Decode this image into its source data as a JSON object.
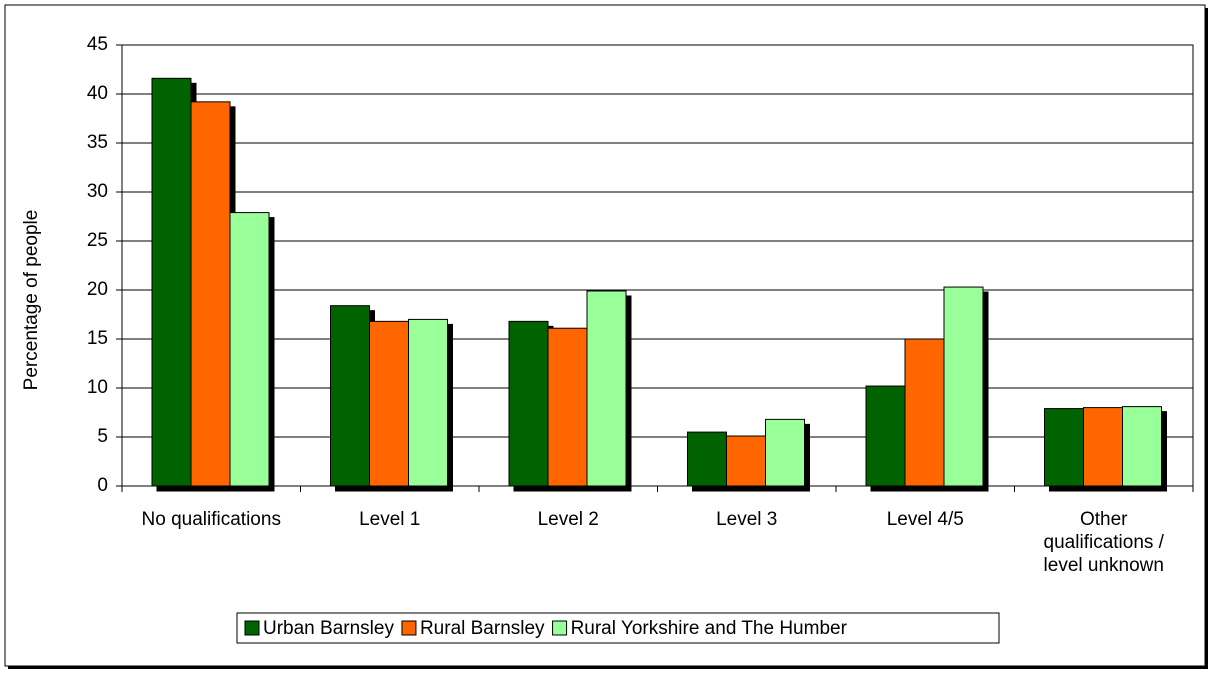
{
  "chart_data": {
    "type": "bar",
    "y_label": "Percentage of people",
    "categories": [
      "No qualifications",
      "Level 1",
      "Level 2",
      "Level 3",
      "Level 4/5",
      "Other qualifications / level unknown"
    ],
    "series": [
      {
        "name": "Urban Barnsley",
        "color": "#006400",
        "values": [
          41.6,
          18.4,
          16.8,
          5.5,
          10.2,
          7.9
        ]
      },
      {
        "name": "Rural Barnsley",
        "color": "#ff6600",
        "values": [
          39.2,
          16.8,
          16.1,
          5.1,
          15.0,
          8.0
        ]
      },
      {
        "name": "Rural Yorkshire and The Humber",
        "color": "#99ff99",
        "values": [
          27.9,
          17.0,
          19.9,
          6.8,
          20.3,
          8.1
        ]
      }
    ],
    "ylim": [
      0,
      45
    ],
    "yticks": [
      0,
      5,
      10,
      15,
      20,
      25,
      30,
      35,
      40,
      45
    ],
    "grid": true,
    "legend": "bottom"
  }
}
